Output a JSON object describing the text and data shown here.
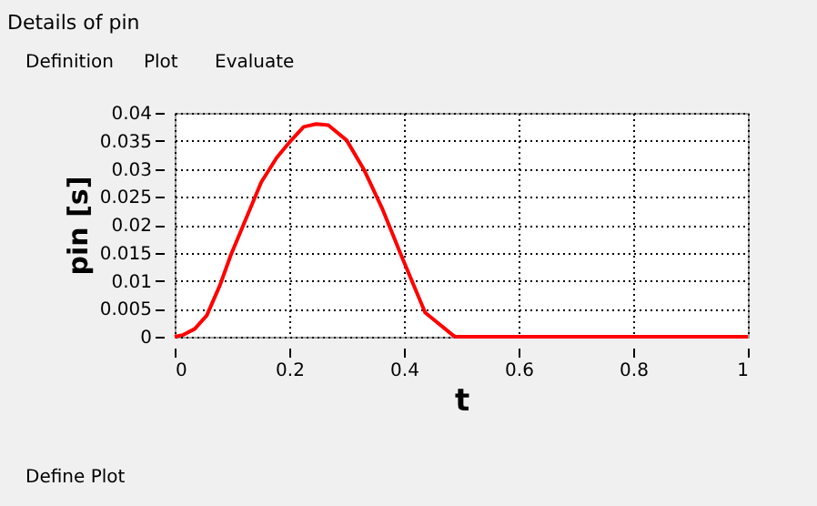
{
  "chart_data": {
    "type": "line",
    "title": "Details of pin",
    "xlabel": "t",
    "ylabel": "pin [s]",
    "annotations": [
      "Definition",
      "Plot",
      "Evaluate",
      "Define Plot"
    ],
    "x": [
      0,
      0.014,
      0.035,
      0.056,
      0.079,
      0.098,
      0.12,
      0.151,
      0.178,
      0.199,
      0.225,
      0.247,
      0.268,
      0.3,
      0.331,
      0.363,
      0.395,
      0.437,
      0.485,
      0.49,
      1
    ],
    "series": [
      {
        "color": "#ff0000",
        "values": [
          0,
          0.0003,
          0.0014,
          0.0038,
          0.0092,
          0.0146,
          0.02,
          0.0276,
          0.032,
          0.0346,
          0.0375,
          0.038,
          0.0378,
          0.0351,
          0.0297,
          0.0227,
          0.0146,
          0.0043,
          0.0003,
          0,
          0
        ]
      }
    ],
    "xlim": [
      0,
      1
    ],
    "ylim": [
      0,
      0.04
    ],
    "xticks": [
      0,
      0.2,
      0.4,
      0.6,
      0.8,
      1
    ],
    "yticks": [
      0,
      0.005,
      0.01,
      0.015,
      0.02,
      0.025,
      0.03,
      0.035,
      0.04
    ],
    "grid": true,
    "marker": "none",
    "line_style": "solid"
  }
}
